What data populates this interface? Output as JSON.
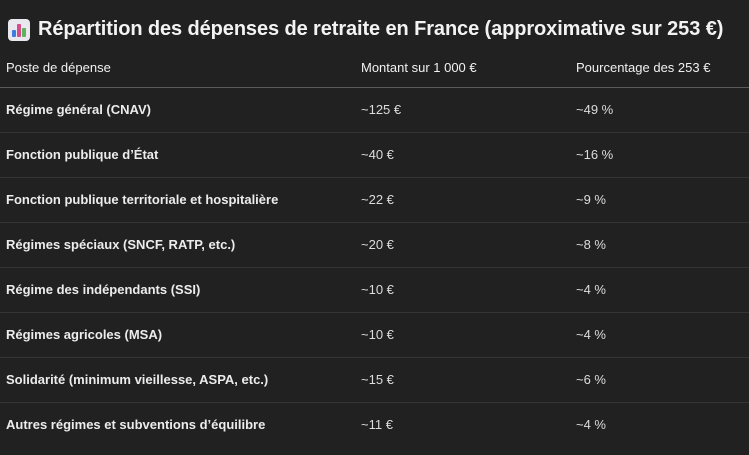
{
  "heading": {
    "icon": "bar-chart-icon",
    "title": "Répartition des dépenses de retraite en France (approximative sur 253 €)"
  },
  "table": {
    "headers": [
      "Poste de dépense",
      "Montant sur 1 000 €",
      "Pourcentage des 253 €"
    ],
    "rows": [
      {
        "label": "Régime général (CNAV)",
        "amount": "~125 €",
        "percent": "~49 %"
      },
      {
        "label": "Fonction publique d’État",
        "amount": "~40 €",
        "percent": "~16 %"
      },
      {
        "label": "Fonction publique territoriale et hospitalière",
        "amount": "~22 €",
        "percent": "~9 %"
      },
      {
        "label": "Régimes spéciaux (SNCF, RATP, etc.)",
        "amount": "~20 €",
        "percent": "~8 %"
      },
      {
        "label": "Régime des indépendants (SSI)",
        "amount": "~10 €",
        "percent": "~4 %"
      },
      {
        "label": "Régimes agricoles (MSA)",
        "amount": "~10 €",
        "percent": "~4 %"
      },
      {
        "label": "Solidarité (minimum vieillesse, ASPA, etc.)",
        "amount": "~15 €",
        "percent": "~6 %"
      },
      {
        "label": "Autres régimes et subventions d’équilibre",
        "amount": "~11 €",
        "percent": "~4 %"
      }
    ]
  }
}
